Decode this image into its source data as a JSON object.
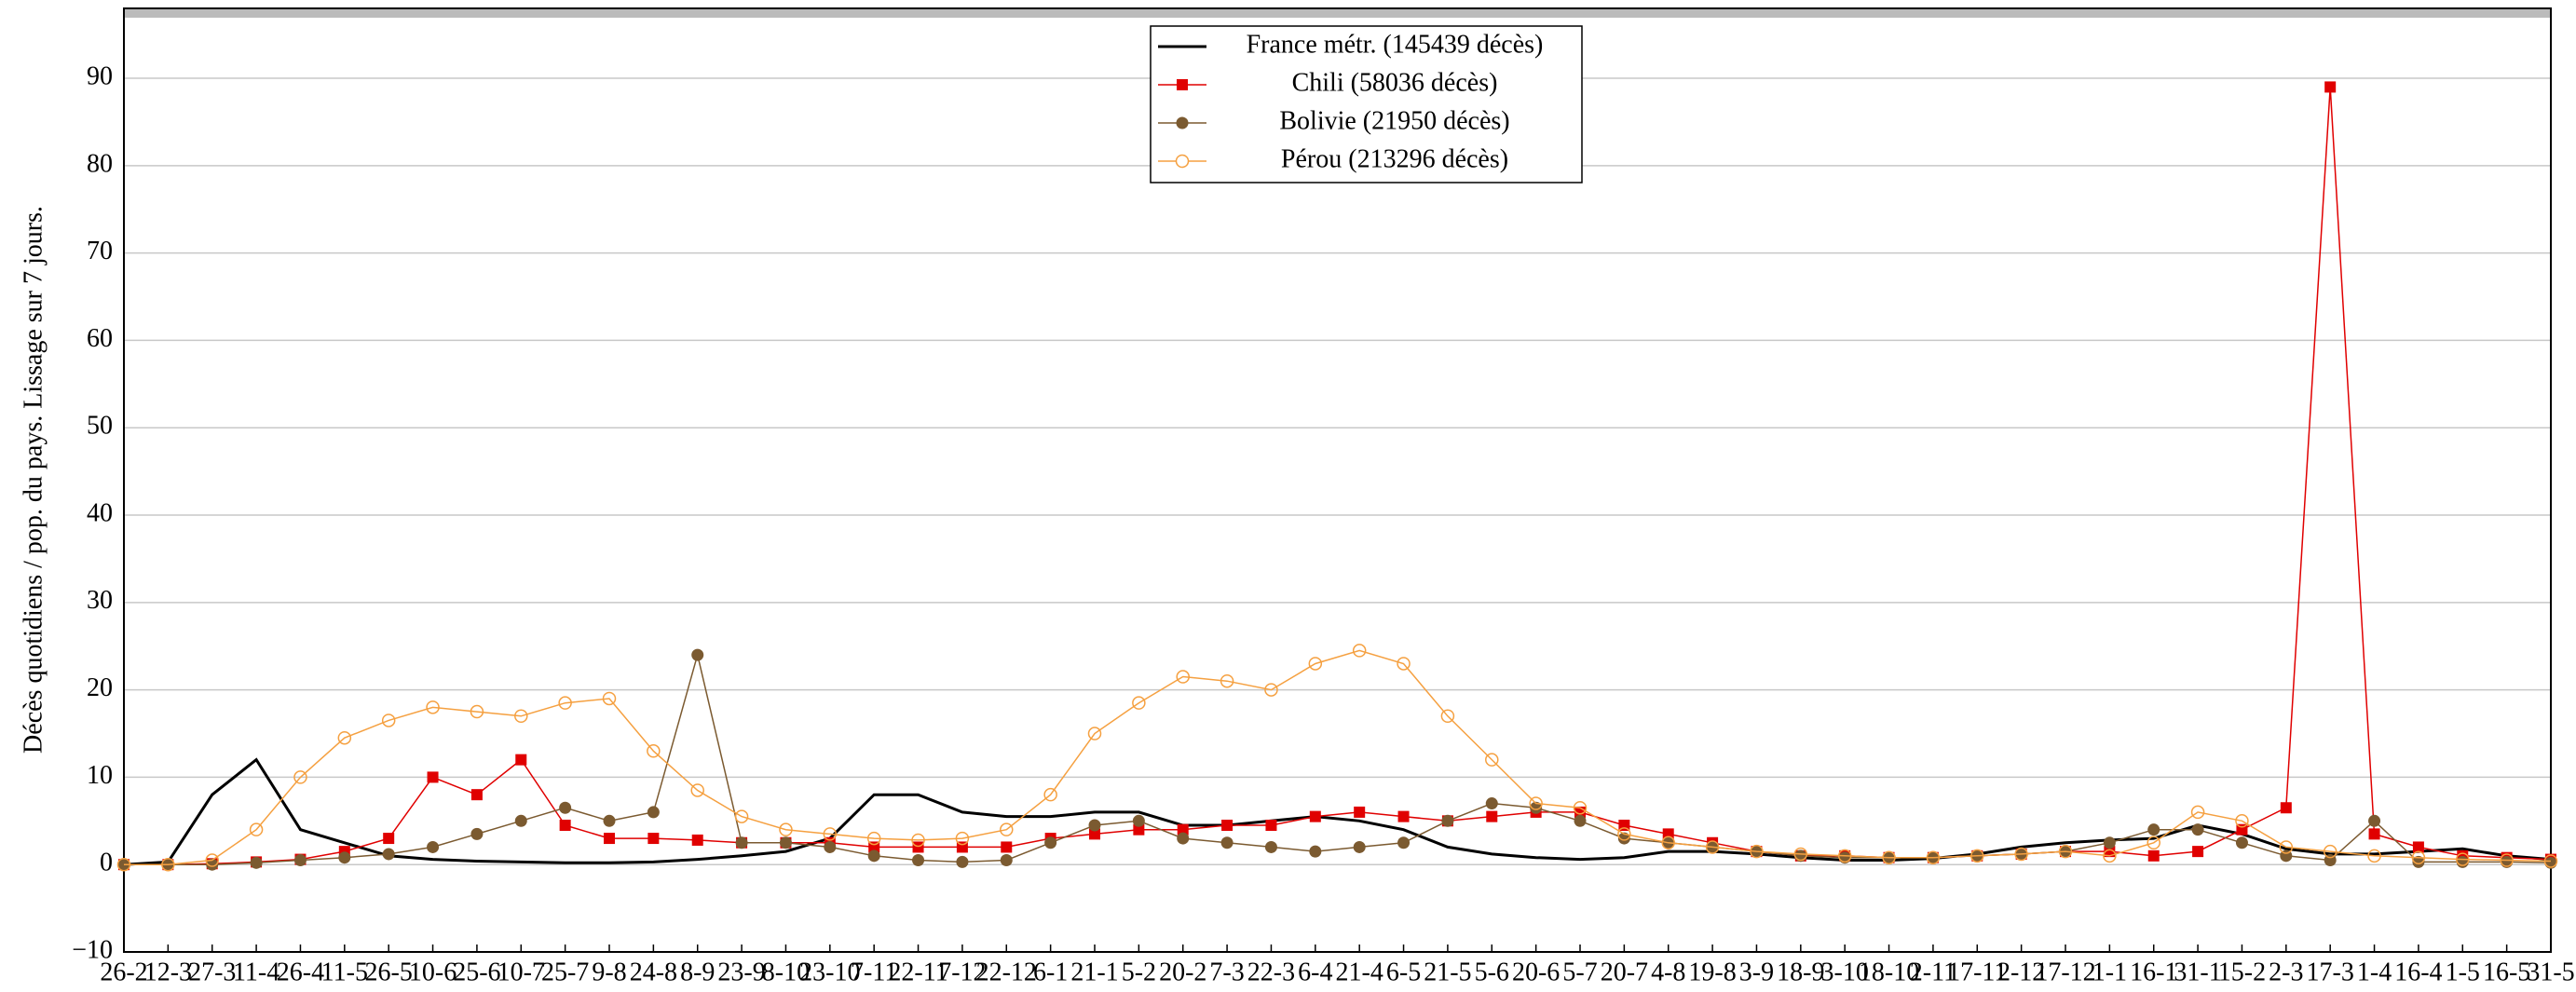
{
  "chart_data": {
    "type": "line",
    "ylabel": "Décès quotidiens / pop. du pays. Lissage sur 7 jours.",
    "categories": [
      "26-2",
      "12-3",
      "27-3",
      "11-4",
      "26-4",
      "11-5",
      "26-5",
      "10-6",
      "25-6",
      "10-7",
      "25-7",
      "9-8",
      "24-8",
      "8-9",
      "23-9",
      "8-10",
      "23-10",
      "7-11",
      "22-11",
      "7-12",
      "22-12",
      "6-1",
      "21-1",
      "5-2",
      "20-2",
      "7-3",
      "22-3",
      "6-4",
      "21-4",
      "6-5",
      "21-5",
      "5-6",
      "20-6",
      "5-7",
      "20-7",
      "4-8",
      "19-8",
      "3-9",
      "18-9",
      "3-10",
      "18-10",
      "2-11",
      "17-11",
      "2-12",
      "17-12",
      "1-1",
      "16-1",
      "31-1",
      "15-2",
      "2-3",
      "17-3",
      "1-4",
      "16-4",
      "1-5",
      "16-5",
      "31-5"
    ],
    "series": [
      {
        "name": "France métr. (145439 décès)",
        "color": "#000000",
        "marker": "none",
        "values": [
          0,
          0.3,
          8,
          12,
          4,
          2.5,
          1,
          0.6,
          0.4,
          0.3,
          0.2,
          0.2,
          0.3,
          0.6,
          1,
          1.5,
          3,
          8,
          8,
          6,
          5.5,
          5.5,
          6,
          6,
          4.5,
          4.5,
          5,
          5.5,
          5,
          4,
          2,
          1.2,
          0.8,
          0.6,
          0.8,
          1.5,
          1.5,
          1.2,
          0.8,
          0.5,
          0.5,
          0.7,
          1.2,
          2,
          2.5,
          2.8,
          3,
          4.5,
          3.5,
          1.8,
          1.2,
          1.2,
          1.5,
          1.8,
          1,
          0.6
        ]
      },
      {
        "name": "Chili (58036 décès)",
        "color": "#e00000",
        "marker": "square",
        "values": [
          0,
          0,
          0.1,
          0.3,
          0.6,
          1.5,
          3,
          10,
          8,
          12,
          4.5,
          3,
          3,
          2.8,
          2.5,
          2.5,
          2.5,
          2,
          2,
          2,
          2,
          3,
          3.5,
          4,
          4,
          4.5,
          4.5,
          5.5,
          6,
          5.5,
          5,
          5.5,
          6,
          6,
          4.5,
          3.5,
          2.5,
          1.5,
          1,
          1,
          0.8,
          0.8,
          1,
          1.2,
          1.5,
          1.5,
          1,
          1.5,
          4,
          6.5,
          89,
          3.5,
          2,
          1,
          0.8,
          0.6
        ]
      },
      {
        "name": "Bolivie (21950 décès)",
        "color": "#7b5a30",
        "marker": "circle",
        "values": [
          0,
          0,
          0,
          0.2,
          0.5,
          0.8,
          1.2,
          2,
          3.5,
          5,
          6.5,
          5,
          6,
          24,
          2.5,
          2.5,
          2,
          1,
          0.5,
          0.3,
          0.5,
          2.5,
          4.5,
          5,
          3,
          2.5,
          2,
          1.5,
          2,
          2.5,
          5,
          7,
          6.5,
          5,
          3,
          2.5,
          2,
          1.5,
          1,
          0.8,
          0.8,
          0.8,
          1,
          1.2,
          1.5,
          2.5,
          4,
          4,
          2.5,
          1,
          0.5,
          5,
          0.3,
          0.3,
          0.3,
          0.2
        ]
      },
      {
        "name": "Pérou (213296 décès)",
        "color": "#f5a040",
        "marker": "open-circle",
        "values": [
          0,
          0,
          0.5,
          4,
          10,
          14.5,
          16.5,
          18,
          17.5,
          17,
          18.5,
          19,
          13,
          8.5,
          5.5,
          4,
          3.5,
          3,
          2.8,
          3,
          4,
          8,
          15,
          18.5,
          21.5,
          21,
          20,
          23,
          24.5,
          23,
          17,
          12,
          7,
          6.5,
          3.5,
          2.5,
          2,
          1.5,
          1.2,
          1,
          0.8,
          0.8,
          1,
          1.2,
          1.5,
          1,
          2.5,
          6,
          5,
          2,
          1.5,
          1,
          0.8,
          0.6,
          0.5,
          0.4
        ]
      }
    ],
    "ylim": [
      -10,
      98
    ],
    "yticks": [
      {
        "value": -10,
        "label": "−10"
      },
      0,
      10,
      20,
      30,
      40,
      50,
      60,
      70,
      80,
      90
    ],
    "grid": true,
    "legend": "top-center"
  }
}
